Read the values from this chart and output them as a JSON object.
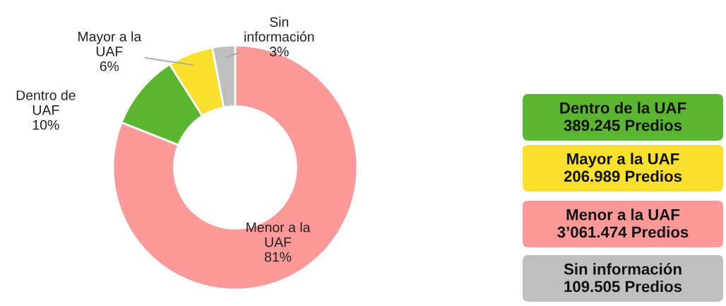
{
  "chart_data": [
    {
      "type": "donut",
      "categories": [
        "Menor a la\nUAF",
        "Dentro de\nUAF",
        "Mayor a la\nUAF",
        "Sin\ninformación"
      ],
      "values": [
        81,
        10,
        6,
        3
      ],
      "colors": [
        "#fe9999",
        "#5cb531",
        "#f9e02f",
        "#bfbfbf"
      ],
      "value_labels": [
        "81%",
        "10%",
        "6%",
        "3%"
      ]
    },
    {
      "type": "other",
      "annotations": [
        "Dentro de la UAF\n389.245 Predios",
        "Mayor a la UAF\n206.989 Predios",
        "Menor a la UAF\n3’061.474 Predios",
        "Sin información\n109.505 Predios"
      ],
      "colors": [
        "#5cb531",
        "#f9e02f",
        "#fe9999",
        "#bfbfbf"
      ]
    }
  ]
}
